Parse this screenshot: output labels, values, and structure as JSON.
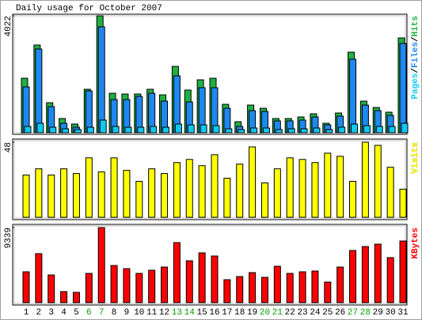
{
  "chart_data": [
    {
      "type": "bar",
      "title": "Daily usage for October 2007",
      "legend_separator": "/",
      "ylim": [
        0,
        4022
      ],
      "yticks": [
        4022
      ],
      "series": [
        {
          "name": "Hits",
          "color": "#20b040",
          "values": [
            1875,
            3017,
            1033,
            489,
            299,
            1495,
            4022,
            1359,
            1332,
            1332,
            1495,
            1304,
            2283,
            1467,
            1821,
            1875,
            978,
            380,
            951,
            842,
            489,
            489,
            543,
            652,
            326,
            679,
            2772,
            1087,
            870,
            707,
            3261
          ]
        },
        {
          "name": "Files",
          "color": "#1e88f0",
          "values": [
            1576,
            2881,
            897,
            326,
            190,
            1440,
            3642,
            1141,
            1141,
            1250,
            1359,
            1087,
            1957,
            1060,
            1549,
            1549,
            842,
            217,
            761,
            734,
            408,
            408,
            435,
            543,
            272,
            571,
            2527,
            951,
            761,
            598,
            3071
          ]
        },
        {
          "name": "Pages",
          "color": "#10c8f0",
          "values": [
            217,
            326,
            190,
            136,
            109,
            190,
            435,
            217,
            190,
            190,
            217,
            190,
            299,
            272,
            272,
            245,
            136,
            109,
            163,
            163,
            109,
            136,
            136,
            163,
            109,
            190,
            299,
            245,
            217,
            217,
            326
          ]
        }
      ]
    },
    {
      "type": "bar",
      "ylim": [
        0,
        48
      ],
      "yticks": [
        48
      ],
      "series": [
        {
          "name": "Visits",
          "color": "#ffff00",
          "values": [
            27,
            31,
            27,
            31,
            28,
            38,
            29,
            38,
            30,
            23,
            31,
            28,
            35,
            37,
            33,
            40,
            25,
            34,
            45,
            22,
            31,
            38,
            37,
            35,
            41,
            39,
            23,
            48,
            46,
            32,
            18
          ]
        }
      ]
    },
    {
      "type": "bar",
      "ylim": [
        0,
        9339
      ],
      "yticks": [
        9339
      ],
      "categories": [
        "1",
        "2",
        "3",
        "4",
        "5",
        "6",
        "7",
        "8",
        "9",
        "10",
        "11",
        "12",
        "13",
        "14",
        "15",
        "16",
        "17",
        "18",
        "19",
        "20",
        "21",
        "22",
        "23",
        "24",
        "25",
        "26",
        "27",
        "28",
        "29",
        "30",
        "31"
      ],
      "category_colors": [
        "#000000",
        "#000000",
        "#000000",
        "#000000",
        "#000000",
        "#00a000",
        "#00a000",
        "#000000",
        "#000000",
        "#000000",
        "#000000",
        "#000000",
        "#00a000",
        "#00a000",
        "#000000",
        "#000000",
        "#000000",
        "#000000",
        "#000000",
        "#00a000",
        "#00a000",
        "#000000",
        "#000000",
        "#000000",
        "#000000",
        "#000000",
        "#00a000",
        "#00a000",
        "#000000",
        "#000000",
        "#000000"
      ],
      "series": [
        {
          "name": "KBytes",
          "color": "#ff0000",
          "values": [
            3834,
            6095,
            3441,
            1376,
            1278,
            3637,
            9339,
            4620,
            4227,
            3637,
            4031,
            4424,
            7471,
            5210,
            6193,
            5800,
            2851,
            3244,
            3736,
            3146,
            4522,
            3637,
            3834,
            3932,
            2556,
            4424,
            6488,
            6980,
            7275,
            5603,
            7668
          ]
        }
      ]
    }
  ]
}
